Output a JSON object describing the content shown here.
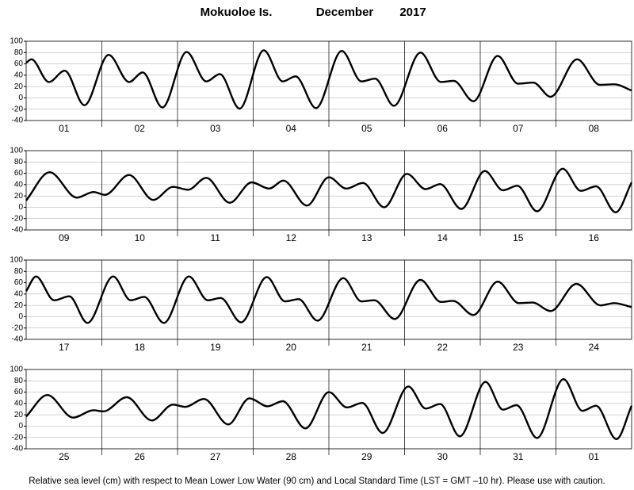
{
  "title_location": "Mokuoloe Is.",
  "title_month": "December",
  "title_year": "2017",
  "footer": "Relative sea level (cm) with respect to Mean Lower Low Water (90 cm) and Local Standard Time (LST = GMT –10 hr). Please use with caution.",
  "chart_data": [
    {
      "type": "line",
      "color": "#000000",
      "categories": [
        "01",
        "02",
        "03",
        "04",
        "05",
        "06",
        "07",
        "08"
      ],
      "xlim": [
        0,
        8
      ],
      "ylim": [
        -40,
        100
      ],
      "yticks": [
        -40,
        -20,
        0,
        20,
        40,
        60,
        80,
        100
      ],
      "grid": true,
      "x": [
        0,
        0.07,
        0.3,
        0.51,
        0.77,
        1.09,
        1.36,
        1.54,
        1.8,
        2.12,
        2.38,
        2.56,
        2.82,
        3.14,
        3.39,
        3.56,
        3.83,
        4.17,
        4.43,
        4.61,
        4.86,
        5.21,
        5.48,
        5.65,
        5.91,
        6.23,
        6.5,
        6.7,
        6.93,
        7.28,
        7.58,
        7.77,
        8
      ],
      "values": [
        62,
        68,
        28,
        48,
        -13,
        76,
        28,
        45,
        -17,
        81,
        29,
        42,
        -19,
        84,
        29,
        38,
        -18,
        83,
        29,
        34,
        -14,
        80,
        28,
        30,
        -6,
        74,
        25,
        27,
        2,
        68,
        23,
        24,
        13
      ]
    },
    {
      "type": "line",
      "color": "#000000",
      "categories": [
        "09",
        "10",
        "11",
        "12",
        "13",
        "14",
        "15",
        "16"
      ],
      "xlim": [
        0,
        8
      ],
      "ylim": [
        -40,
        100
      ],
      "yticks": [
        -40,
        -20,
        0,
        20,
        40,
        60,
        80,
        100
      ],
      "grid": true,
      "x": [
        0,
        0.31,
        0.67,
        0.89,
        1.04,
        1.36,
        1.68,
        1.94,
        2.14,
        2.38,
        2.69,
        2.98,
        3.21,
        3.4,
        3.71,
        4,
        4.23,
        4.45,
        4.73,
        5.03,
        5.28,
        5.47,
        5.75,
        6.06,
        6.3,
        6.49,
        6.75,
        7.09,
        7.33,
        7.53,
        7.79,
        8
      ],
      "values": [
        12,
        62,
        17,
        27,
        22,
        57,
        13,
        36,
        31,
        52,
        8,
        44,
        33,
        47,
        3,
        53,
        33,
        43,
        0,
        59,
        32,
        41,
        -3,
        64,
        30,
        38,
        -7,
        68,
        29,
        37,
        -9,
        44
      ]
    },
    {
      "type": "line",
      "color": "#000000",
      "categories": [
        "17",
        "18",
        "19",
        "20",
        "21",
        "22",
        "23",
        "24"
      ],
      "xlim": [
        0,
        8
      ],
      "ylim": [
        -40,
        100
      ],
      "yticks": [
        -40,
        -20,
        0,
        20,
        40,
        60,
        80,
        100
      ],
      "grid": true,
      "x": [
        0,
        0.13,
        0.37,
        0.57,
        0.81,
        1.15,
        1.38,
        1.56,
        1.82,
        2.15,
        2.4,
        2.57,
        2.84,
        3.18,
        3.42,
        3.6,
        3.85,
        4.19,
        4.43,
        4.6,
        4.87,
        5.21,
        5.48,
        5.64,
        5.91,
        6.23,
        6.51,
        6.69,
        6.93,
        7.27,
        7.59,
        7.77,
        8
      ],
      "values": [
        45,
        71,
        29,
        36,
        -11,
        71,
        29,
        35,
        -11,
        71,
        29,
        33,
        -10,
        70,
        27,
        31,
        -7,
        68,
        27,
        29,
        -4,
        65,
        26,
        28,
        3,
        62,
        24,
        25,
        10,
        58,
        20,
        24,
        17
      ]
    },
    {
      "type": "line",
      "color": "#000000",
      "categories": [
        "25",
        "26",
        "27",
        "28",
        "29",
        "30",
        "31",
        "01"
      ],
      "xlim": [
        0,
        8
      ],
      "ylim": [
        -40,
        100
      ],
      "yticks": [
        -40,
        -20,
        0,
        20,
        40,
        60,
        80,
        100
      ],
      "grid": true,
      "x": [
        0,
        0.28,
        0.62,
        0.89,
        1.02,
        1.33,
        1.66,
        1.94,
        2.1,
        2.35,
        2.67,
        2.95,
        3.19,
        3.39,
        3.69,
        4,
        4.24,
        4.44,
        4.71,
        5.05,
        5.28,
        5.47,
        5.73,
        6.07,
        6.3,
        6.48,
        6.75,
        7.1,
        7.35,
        7.53,
        7.8,
        8
      ],
      "values": [
        17,
        55,
        15,
        28,
        26,
        51,
        10,
        38,
        34,
        48,
        3,
        49,
        35,
        44,
        -4,
        60,
        33,
        41,
        -12,
        70,
        31,
        39,
        -18,
        78,
        29,
        37,
        -21,
        83,
        27,
        36,
        -23,
        36
      ]
    }
  ]
}
